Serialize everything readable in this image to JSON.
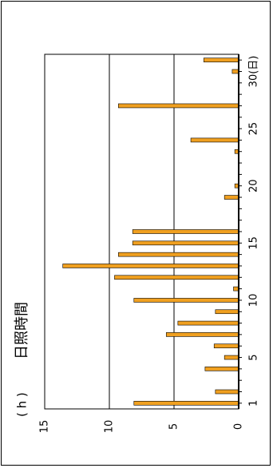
{
  "chart_data": {
    "type": "bar",
    "orientation": "rotated-90-ccw",
    "ylabel": "日照時間",
    "yunit": "( h )",
    "xunit": "(日)",
    "ylim": [
      0,
      15
    ],
    "yticks": [
      0,
      5,
      10,
      15
    ],
    "xticks": [
      1,
      5,
      10,
      15,
      20,
      25,
      30
    ],
    "xtick_labels": [
      "1",
      "5",
      "10",
      "15",
      "20",
      "25",
      "30(日)"
    ],
    "grid": "horizontal-major",
    "bar_color": "#f0a020",
    "categories": [
      1,
      2,
      3,
      4,
      5,
      6,
      7,
      8,
      9,
      10,
      11,
      12,
      13,
      14,
      15,
      16,
      17,
      18,
      19,
      20,
      21,
      22,
      23,
      24,
      25,
      26,
      27,
      28,
      29,
      30,
      31
    ],
    "values": [
      8.1,
      1.8,
      0,
      2.6,
      1.1,
      1.9,
      5.6,
      4.7,
      1.8,
      8.1,
      0.4,
      9.6,
      13.6,
      9.3,
      8.2,
      8.2,
      0,
      0,
      1.1,
      0.3,
      0,
      0,
      0.3,
      3.7,
      0,
      0,
      9.3,
      0,
      0,
      0.5,
      2.7
    ]
  }
}
